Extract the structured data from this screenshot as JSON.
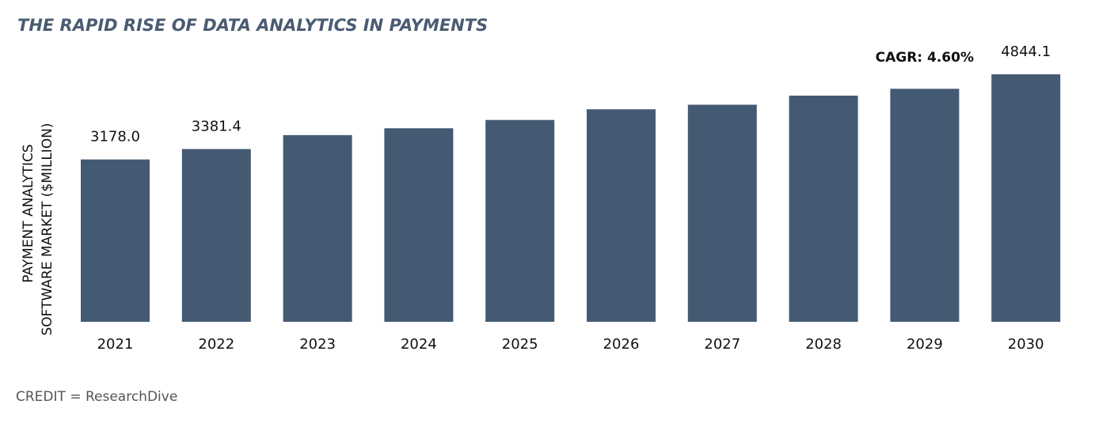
{
  "chart_data": {
    "type": "bar",
    "title": "THE RAPID RISE OF DATA ANALYTICS IN PAYMENTS",
    "y_label": [
      "PAYMENT ANALYTICS",
      "SOFTWARE MARKET ($MILLION)"
    ],
    "categories": [
      "2021",
      "2022",
      "2023",
      "2024",
      "2025",
      "2026",
      "2027",
      "2028",
      "2029",
      "2030"
    ],
    "values": [
      3178.0,
      3381.4,
      3654,
      3788,
      3951,
      4160,
      4249,
      4427,
      4561,
      4844.1
    ],
    "value_labels": [
      "3178.0",
      "3381.4",
      null,
      null,
      null,
      null,
      null,
      null,
      null,
      "4844.1"
    ],
    "color": "#445a72",
    "annotation": "CAGR: 4.60%",
    "credit": "CREDIT = ResearchDive"
  }
}
